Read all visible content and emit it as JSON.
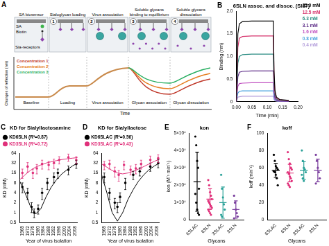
{
  "diagram": {
    "panel": "A",
    "header": "SA biosensor",
    "steps": [
      {
        "number": 1,
        "title": "Sialoglycan loading"
      },
      {
        "number": 2,
        "title": "Virus association"
      },
      {
        "number": 3,
        "title": "Soluble glycans binding to equilibrium"
      },
      {
        "number": 4,
        "title": "Soluble glycans dissociation"
      }
    ],
    "sensor_labels": [
      "SA",
      "Biotin",
      "Sia-receptors"
    ],
    "y_label": "Changes of reflection (nm)",
    "x_label": "Time",
    "phases": [
      "Baseline",
      "Loading",
      "Virus association",
      "Glycan association",
      "Glycan dissociation"
    ],
    "concentrations": [
      {
        "name": "Concentration 1",
        "color": "#c0392b"
      },
      {
        "name": "Concentration 2",
        "color": "#e67e22"
      },
      {
        "name": "Concentration 3",
        "color": "#27ae60"
      }
    ]
  },
  "chart_data": [
    {
      "type": "line",
      "panel": "B",
      "title": "6SLN assoc. and dissoc. (SI87)",
      "x_label": "Time (min)",
      "y_label": "Binding (nm)",
      "x": [
        0,
        0.005,
        0.01,
        0.02,
        0.05,
        0.12,
        0.122,
        0.125,
        0.13,
        0.14,
        0.17
      ],
      "xlim": [
        0,
        0.2
      ],
      "xticks": [
        {
          "value": 0,
          "label": "0.00"
        },
        0.05,
        {
          "value": 0.1,
          "label": "0.10"
        },
        0.15,
        {
          "value": 0.2,
          "label": "0.20"
        }
      ],
      "ylim": [
        0,
        2
      ],
      "yticks": [
        0,
        0.5,
        {
          "value": 1,
          "label": "1.0"
        },
        1.5,
        {
          "value": 2,
          "label": "2.0"
        }
      ],
      "grid": false,
      "legend": "right",
      "series": [
        {
          "name": "25.0 mM",
          "color": "#000000",
          "values": [
            0,
            1.5,
            1.72,
            1.77,
            1.78,
            1.78,
            0.7,
            0.25,
            0.1,
            0.05,
            0.03
          ]
        },
        {
          "name": "12.5 mM",
          "color": "#d6336c",
          "values": [
            0,
            1.2,
            1.4,
            1.44,
            1.45,
            1.45,
            0.58,
            0.2,
            0.08,
            0.04,
            0.02
          ]
        },
        {
          "name": "6.3 mM",
          "color": "#2a8c82",
          "values": [
            0,
            0.85,
            1.0,
            1.04,
            1.05,
            1.05,
            0.42,
            0.15,
            0.06,
            0.03,
            0.02
          ]
        },
        {
          "name": "3.1 mM",
          "color": "#5b2a86",
          "values": [
            0,
            0.55,
            0.65,
            0.67,
            0.68,
            0.68,
            0.27,
            0.1,
            0.04,
            0.02,
            0.01
          ]
        },
        {
          "name": "1.6 mM",
          "color": "#c050c0",
          "values": [
            0,
            0.34,
            0.4,
            0.41,
            0.42,
            0.42,
            0.17,
            0.06,
            0.03,
            0.01,
            0.01
          ]
        },
        {
          "name": "0.8 mM",
          "color": "#4aa3df",
          "values": [
            0,
            0.19,
            0.23,
            0.24,
            0.24,
            0.24,
            0.1,
            0.04,
            0.02,
            0.01,
            0
          ]
        },
        {
          "name": "0.4 mM",
          "color": "#b39ddb",
          "values": [
            0,
            0.1,
            0.11,
            0.12,
            0.12,
            0.12,
            0.05,
            0.02,
            0.01,
            0,
            0
          ]
        }
      ]
    },
    {
      "type": "scatter",
      "panel": "C",
      "title": "KD for Sialyllactosamine",
      "x_label": "Year of virus isolation",
      "y_label": "KD (mM)",
      "log": "y",
      "grid": false,
      "legend": "top",
      "xlim": [
        1966,
        2010
      ],
      "xticks": [
        1968,
        1972,
        1976,
        1980,
        1984,
        1988,
        1992,
        1996,
        2000,
        2004,
        2008
      ],
      "ylim": [
        0.5,
        64
      ],
      "yticks": [
        0.5,
        1,
        2,
        4,
        8,
        16,
        32,
        64
      ],
      "series": [
        {
          "name": "KD6SLN (R²=0.87)",
          "color": "#000000",
          "marker": "circle",
          "x": [
            1968,
            1972,
            1975,
            1977,
            1980,
            1983,
            1987,
            1992,
            1995,
            2003,
            2009
          ],
          "values": [
            6,
            4,
            1.5,
            1,
            1.3,
            4,
            8,
            12,
            16,
            20,
            30
          ],
          "errors": [
            2,
            1.5,
            0.5,
            0.3,
            0.4,
            1.5,
            3,
            4,
            5,
            6,
            8
          ],
          "fit_x": [
            1966,
            1970,
            1974,
            1978,
            1982,
            1986,
            1990,
            1994,
            1998,
            2002,
            2006,
            2010
          ],
          "fit": [
            9,
            4,
            1.6,
            0.9,
            1.3,
            3,
            6,
            10,
            15,
            20,
            26,
            32
          ]
        },
        {
          "name": "KD3SLN (R²=0.72)",
          "color": "#e0307a",
          "marker": "circle",
          "x": [
            1968,
            1972,
            1976,
            1979,
            1983,
            1988,
            1992,
            1996,
            2003,
            2009
          ],
          "values": [
            16,
            25,
            16,
            22,
            30,
            28,
            32,
            40,
            48,
            40
          ],
          "errors": [
            5,
            8,
            5,
            7,
            9,
            8,
            10,
            10,
            12,
            10
          ],
          "fit_x": [
            1966,
            1970,
            1974,
            1978,
            1982,
            1986,
            1990,
            1994,
            1998,
            2002,
            2006,
            2010
          ],
          "fit": [
            10,
            14,
            19,
            24,
            28,
            32,
            35,
            38,
            41,
            43,
            45,
            47
          ]
        }
      ]
    },
    {
      "type": "scatter",
      "panel": "D",
      "title": "KD for Sialyllactose",
      "x_label": "Year of virus isolation",
      "y_label": "KD (mM)",
      "log": "y",
      "grid": false,
      "legend": "top",
      "xlim": [
        1966,
        2010
      ],
      "xticks": [
        1968,
        1972,
        1976,
        1980,
        1984,
        1988,
        1992,
        1996,
        2000,
        2004,
        2008
      ],
      "ylim": [
        0.5,
        64
      ],
      "yticks": [
        0.5,
        1,
        2,
        4,
        8,
        16,
        32,
        64
      ],
      "series": [
        {
          "name": "KD6SLAC (R²=0.56)",
          "color": "#000000",
          "marker": "circle",
          "x": [
            1968,
            1972,
            1976,
            1978,
            1980,
            1984,
            1990,
            1995,
            2003,
            2009
          ],
          "values": [
            12,
            4,
            2,
            1.5,
            3,
            8,
            14,
            18,
            25,
            32
          ],
          "errors": [
            4,
            1.5,
            0.7,
            0.5,
            1,
            3,
            4,
            5,
            7,
            9
          ],
          "fit_x": [
            1966,
            1970,
            1974,
            1978,
            1982,
            1986,
            1990,
            1994,
            1998,
            2002,
            2006,
            2010
          ],
          "fit": [
            14,
            4,
            1,
            0.55,
            1,
            2.5,
            5,
            9,
            14,
            20,
            26,
            32
          ]
        },
        {
          "name": "KD3SLAC (R²=0.43)",
          "color": "#e0307a",
          "marker": "circle",
          "x": [
            1968,
            1972,
            1976,
            1979,
            1983,
            1988,
            1992,
            1996,
            2003,
            2009
          ],
          "values": [
            28,
            30,
            18,
            14,
            28,
            20,
            22,
            30,
            40,
            45
          ],
          "errors": [
            8,
            9,
            6,
            5,
            8,
            6,
            7,
            9,
            12,
            12
          ],
          "fit_x": [
            1966,
            1970,
            1974,
            1978,
            1982,
            1986,
            1990,
            1994,
            1998,
            2002,
            2006,
            2010
          ],
          "fit": [
            30,
            24,
            19,
            16,
            15,
            16,
            18,
            21,
            25,
            30,
            36,
            42
          ]
        }
      ]
    },
    {
      "type": "strip",
      "panel": "E",
      "title": "kon",
      "x_label": "Glycans",
      "y_label": "kon (M⁻¹ min⁻¹)",
      "grid": false,
      "categories": [
        "6SLAC",
        "6SLN",
        "3SLAC",
        "3SLN"
      ],
      "colors": [
        "#000000",
        "#e0307a",
        "#2aa198",
        "#7b3f9e"
      ],
      "ylim": [
        0,
        50000
      ],
      "yticks": [
        0,
        {
          "value": 10000,
          "label": "1×10⁴"
        },
        {
          "value": 20000,
          "label": "2×10⁴"
        },
        {
          "value": 30000,
          "label": "3×10⁴"
        },
        {
          "value": 40000,
          "label": "4×10⁴"
        },
        {
          "value": 50000,
          "label": "5×10⁴"
        }
      ],
      "values": [
        [
          48000,
          43000,
          34000,
          30000,
          18000,
          15000,
          10000,
          6000,
          4000,
          3000
        ],
        [
          23000,
          20000,
          16000,
          14000,
          12000,
          11000,
          10000,
          9000,
          8000,
          7000,
          6000,
          5000,
          4000,
          3000
        ],
        [
          26000,
          18000,
          13000,
          9000,
          6000,
          3000,
          2000
        ],
        [
          14000,
          10000,
          6000,
          4000,
          2000,
          1000
        ]
      ],
      "mean": [
        22000,
        12000,
        10000,
        6000
      ],
      "sd": [
        17000,
        6000,
        9000,
        5000
      ]
    },
    {
      "type": "strip",
      "panel": "F",
      "title": "koff",
      "x_label": "Glycans",
      "y_label": "koff (min⁻¹)",
      "grid": false,
      "categories": [
        "6SLAC",
        "6SLN",
        "3SLAC",
        "3SLN"
      ],
      "colors": [
        "#000000",
        "#e0307a",
        "#2aa198",
        "#7b3f9e"
      ],
      "ylim": [
        0,
        100
      ],
      "yticks": [
        0,
        20,
        40,
        60,
        80,
        100
      ],
      "values": [
        [
          75,
          68,
          62,
          60,
          58,
          56,
          55,
          52,
          48,
          40
        ],
        [
          78,
          70,
          65,
          60,
          58,
          55,
          53,
          50,
          48,
          45,
          42,
          40,
          38,
          60
        ],
        [
          80,
          68,
          60,
          58,
          55,
          52,
          48,
          45
        ],
        [
          75,
          68,
          60,
          55,
          48,
          42
        ]
      ],
      "mean": [
        57,
        54,
        57,
        57
      ],
      "sd": [
        8,
        10,
        10,
        13
      ]
    }
  ]
}
